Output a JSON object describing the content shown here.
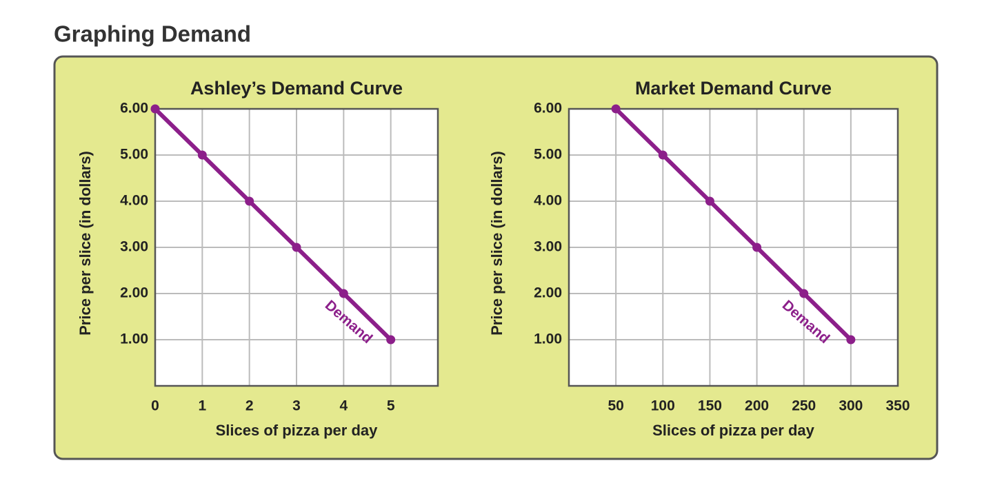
{
  "title": "Graphing Demand",
  "chart_data": [
    {
      "type": "line",
      "title": "Ashley’s Demand Curve",
      "x_label": "Slices of pizza per day",
      "y_label": "Price per slice (in dollars)",
      "x": [
        0,
        1,
        2,
        3,
        4,
        5
      ],
      "values": [
        6,
        5,
        4,
        3,
        2,
        1
      ],
      "color": "#8c1f8a",
      "annotation": "Demand",
      "xlim": [
        0,
        6
      ],
      "xticks": [
        0,
        1,
        2,
        3,
        4,
        5
      ],
      "ylim": [
        0,
        6
      ],
      "yticks": [
        {
          "value": 1,
          "label": "1.00"
        },
        {
          "value": 2,
          "label": "2.00"
        },
        {
          "value": 3,
          "label": "3.00"
        },
        {
          "value": 4,
          "label": "4.00"
        },
        {
          "value": 5,
          "label": "5.00"
        },
        {
          "value": 6,
          "label": "6.00"
        }
      ],
      "grid": true
    },
    {
      "type": "line",
      "title": "Market Demand Curve",
      "x_label": "Slices of pizza per day",
      "y_label": "Price per slice (in dollars)",
      "x": [
        50,
        100,
        150,
        200,
        250,
        300
      ],
      "values": [
        6,
        5,
        4,
        3,
        2,
        1
      ],
      "color": "#8c1f8a",
      "annotation": "Demand",
      "xlim": [
        0,
        350
      ],
      "xticks": [
        50,
        100,
        150,
        200,
        250,
        300,
        350
      ],
      "ylim": [
        0,
        6
      ],
      "yticks": [
        {
          "value": 1,
          "label": "1.00"
        },
        {
          "value": 2,
          "label": "2.00"
        },
        {
          "value": 3,
          "label": "3.00"
        },
        {
          "value": 4,
          "label": "4.00"
        },
        {
          "value": 5,
          "label": "5.00"
        },
        {
          "value": 6,
          "label": "6.00"
        }
      ],
      "grid": true
    }
  ]
}
